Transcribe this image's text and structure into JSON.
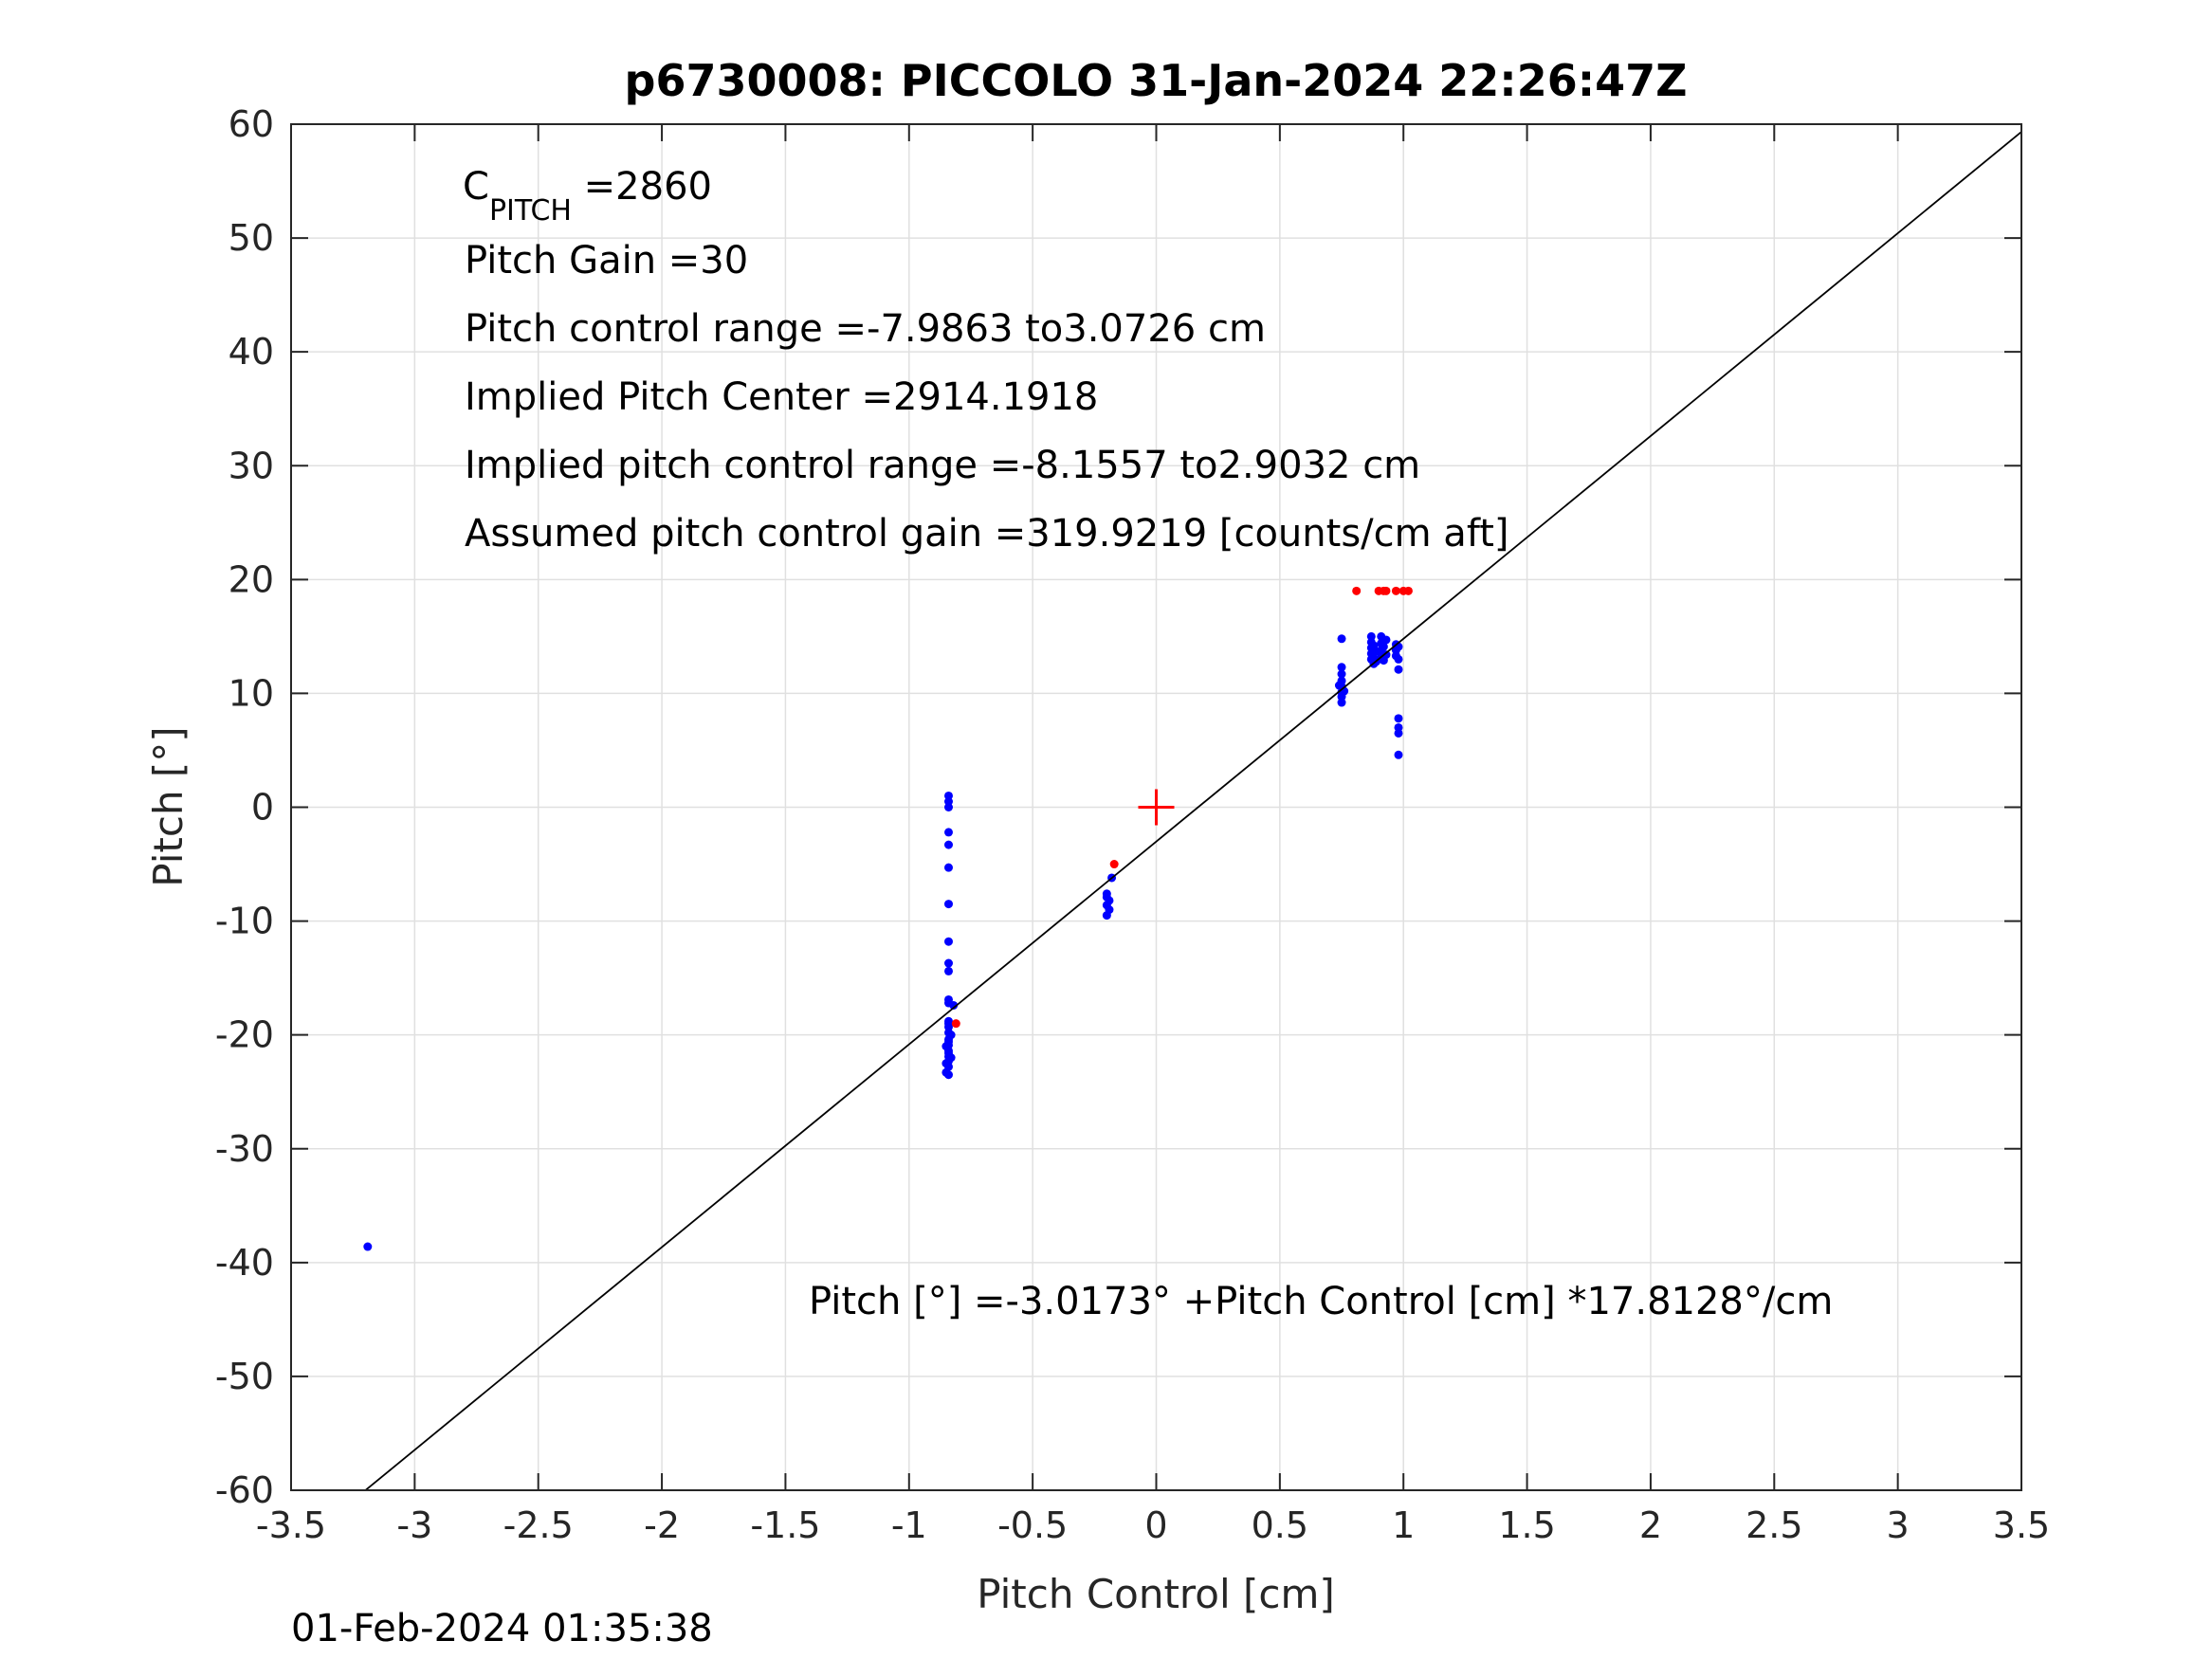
{
  "chart_data": {
    "type": "scatter",
    "title": "p6730008: PICCOLO 31-Jan-2024 22:26:47Z",
    "xlabel": "Pitch Control [cm]",
    "ylabel": "Pitch [°]",
    "xlim": [
      -3.5,
      3.5
    ],
    "ylim": [
      -60,
      60
    ],
    "xticks": [
      -3.5,
      -3,
      -2.5,
      -2,
      -1.5,
      -1,
      -0.5,
      0,
      0.5,
      1,
      1.5,
      2,
      2.5,
      3,
      3.5
    ],
    "xtick_labels": [
      "-3.5",
      "-3",
      "-2.5",
      "-2",
      "-1.5",
      "-1",
      "-0.5",
      "0",
      "0.5",
      "1",
      "1.5",
      "2",
      "2.5",
      "3",
      "3.5"
    ],
    "yticks": [
      -60,
      -50,
      -40,
      -30,
      -20,
      -10,
      0,
      10,
      20,
      30,
      40,
      50,
      60
    ],
    "ytick_labels": [
      "-60",
      "-50",
      "-40",
      "-30",
      "-20",
      "-10",
      "0",
      "10",
      "20",
      "30",
      "40",
      "50",
      "60"
    ],
    "grid": true,
    "colors": {
      "blue_points": "#0000ff",
      "red_points": "#ff0000",
      "fit_line": "#000000",
      "center_marker": "#ff0000",
      "grid": "#e0e0e0",
      "axes": "#262626"
    },
    "series": [
      {
        "color": "#0000ff",
        "marker": "dot",
        "x": [
          -3.19,
          -0.84,
          -0.84,
          -0.84,
          -0.84,
          -0.84,
          -0.84,
          -0.84,
          -0.84,
          -0.84,
          -0.84,
          -0.84,
          -0.84,
          -0.84,
          -0.84,
          -0.84,
          -0.84,
          -0.84,
          -0.84,
          -0.84,
          -0.84,
          -0.84,
          -0.85,
          -0.83,
          -0.85,
          -0.83,
          -0.84,
          -0.84,
          -0.84,
          -0.84,
          -0.82,
          -0.85,
          -0.2,
          -0.2,
          -0.19,
          -0.2,
          -0.19,
          -0.2,
          -0.18,
          0.75,
          0.75,
          0.75,
          0.75,
          0.75,
          0.75,
          0.75,
          0.75,
          0.74,
          0.76,
          0.87,
          0.87,
          0.87,
          0.87,
          0.87,
          0.88,
          0.88,
          0.88,
          0.89,
          0.89,
          0.91,
          0.91,
          0.91,
          0.91,
          0.92,
          0.92,
          0.93,
          0.93,
          0.97,
          0.97,
          0.97,
          0.98,
          0.98,
          0.98,
          0.98,
          0.98,
          0.98,
          0.98
        ],
        "y": [
          -38.6,
          1.0,
          0.5,
          0.0,
          -2.2,
          -3.3,
          -5.3,
          -8.5,
          -11.8,
          -13.7,
          -14.4,
          -16.9,
          -17.2,
          -18.8,
          -19.3,
          -19.8,
          -20.4,
          -20.9,
          -21.4,
          -21.9,
          -22.3,
          -22.8,
          -23.3,
          -20.0,
          -21.0,
          -22.0,
          -23.5,
          -19.0,
          -20.6,
          -21.6,
          -17.4,
          -22.5,
          -7.6,
          -7.9,
          -8.2,
          -8.6,
          -9.0,
          -9.5,
          -6.2,
          14.8,
          12.3,
          11.7,
          11.1,
          10.6,
          10.1,
          9.7,
          9.2,
          10.7,
          10.2,
          15.0,
          14.5,
          14.0,
          13.5,
          13.0,
          12.6,
          14.2,
          13.1,
          13.7,
          12.8,
          15.0,
          14.4,
          13.8,
          13.2,
          14.1,
          12.9,
          13.4,
          14.7,
          14.3,
          13.8,
          13.3,
          14.1,
          13.0,
          12.1,
          7.8,
          7.0,
          6.5,
          4.6
        ]
      },
      {
        "color": "#ff0000",
        "marker": "dot",
        "x": [
          -0.81,
          -0.17,
          0.81,
          0.9,
          0.92,
          0.93,
          0.97,
          1.0,
          1.02
        ],
        "y": [
          -19.0,
          -5.0,
          19.0,
          19.0,
          19.0,
          19.0,
          19.0,
          19.0,
          19.0
        ]
      },
      {
        "color": "#ff0000",
        "marker": "plus",
        "x": [
          0
        ],
        "y": [
          0
        ]
      },
      {
        "color": "#000000",
        "type": "line",
        "x": [
          -3.2,
          3.5
        ],
        "y": [
          -60.02,
          59.33
        ]
      }
    ],
    "annotations": {
      "c_pitch_symbol": "C",
      "c_pitch_subscript": "PITCH",
      "c_pitch_value": " =2860",
      "pitch_gain": "Pitch Gain =30",
      "control_range": "Pitch control range =-7.9863 to3.0726 cm",
      "implied_center": "Implied Pitch Center =2914.1918",
      "implied_range": "Implied pitch control range =-8.1557 to2.9032 cm",
      "assumed_gain": "Assumed pitch control gain =319.9219 [counts/cm aft]",
      "fit_equation": "Pitch [°] =-3.0173° +Pitch Control [cm] *17.8128°/cm"
    },
    "footer_timestamp": "01-Feb-2024 01:35:38"
  }
}
